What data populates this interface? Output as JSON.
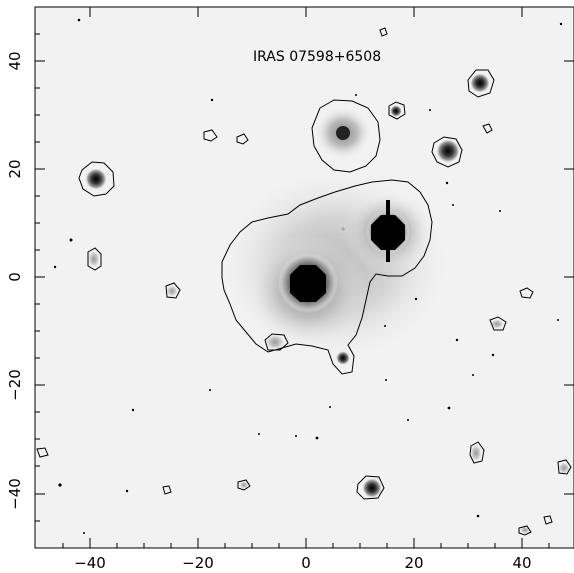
{
  "figure": {
    "title": "IRAS 07598+6508",
    "x_ticks": [
      "−40",
      "−20",
      "0",
      "20",
      "40"
    ],
    "y_ticks": [
      "40",
      "20",
      "0",
      "−20",
      "−40"
    ],
    "x_range": [
      -50,
      50
    ],
    "y_range": [
      -50,
      50
    ],
    "background_color": "#f2f2f2",
    "contour_color": "#000000"
  }
}
